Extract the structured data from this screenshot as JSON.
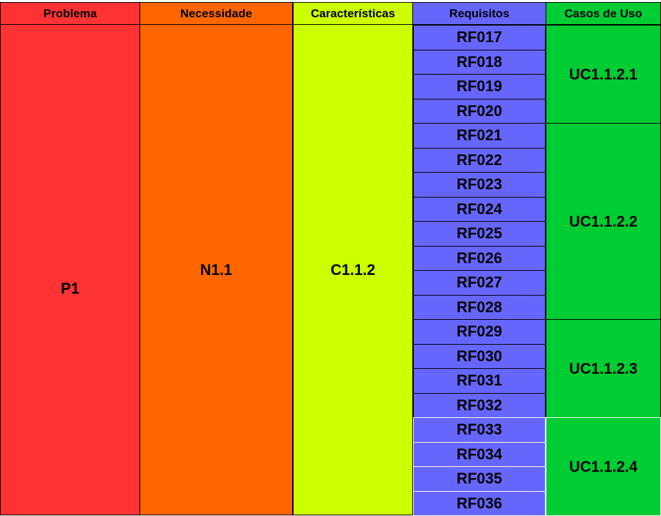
{
  "headers": {
    "problem": "Problema",
    "need": "Necessidade",
    "feature": "Características",
    "requirements": "Requisitos",
    "use_cases": "Casos de Uso"
  },
  "problem": "P1",
  "need": "N1.1",
  "feature": "C1.1.2",
  "requirements": [
    "RF017",
    "RF018",
    "RF019",
    "RF020",
    "RF021",
    "RF022",
    "RF023",
    "RF024",
    "RF025",
    "RF026",
    "RF027",
    "RF028",
    "RF029",
    "RF030",
    "RF031",
    "RF032",
    "RF033",
    "RF034",
    "RF035",
    "RF036"
  ],
  "use_cases": [
    {
      "label": "UC1.1.2.1",
      "requirement_count": 4
    },
    {
      "label": "UC1.1.2.2",
      "requirement_count": 8
    },
    {
      "label": "UC1.1.2.3",
      "requirement_count": 4
    },
    {
      "label": "UC1.1.2.4",
      "requirement_count": 4
    }
  ],
  "colors": {
    "problem": "#ff3333",
    "need": "#ff6600",
    "feature": "#ccff00",
    "requirements": "#6666ff",
    "use_cases": "#00cc33"
  }
}
